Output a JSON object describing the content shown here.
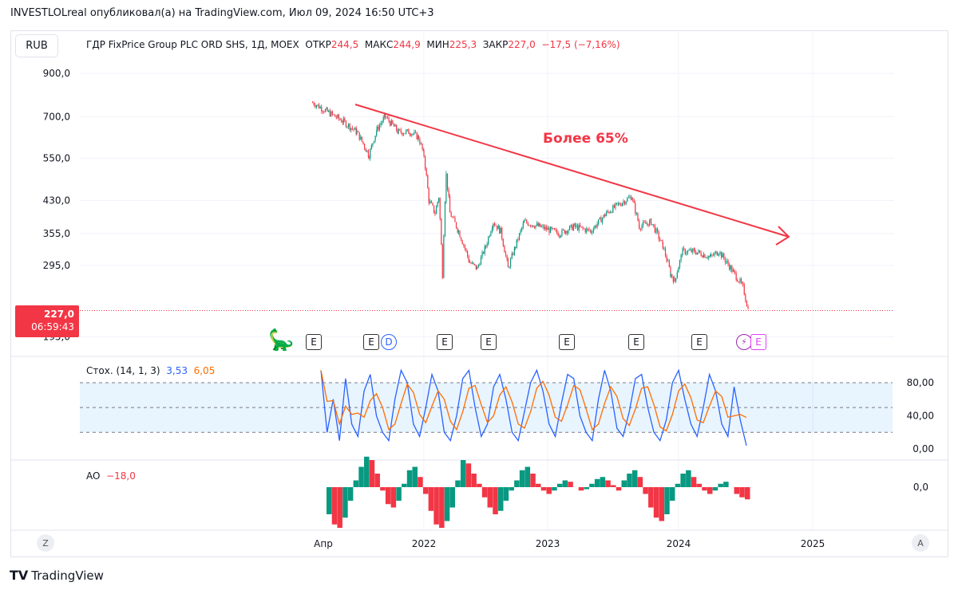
{
  "header": {
    "published": "INVESTLOLreal опубликовал(а) на TradingView.com, Июл 09, 2024 16:50 UTC+3"
  },
  "chart": {
    "currency": "RUB",
    "symbol": "ГДР FixPrice Group PLC ORD SHS, 1Д, MOEX",
    "open_label": "ОТКР",
    "open": "244,5",
    "high_label": "МАКС",
    "high": "244,9",
    "low_label": "МИН",
    "low": "225,3",
    "close_label": "ЗАКР",
    "close": "227,0",
    "change": "−17,5 (−7,16%)",
    "last_price": "227,0",
    "countdown": "06:59:43",
    "annotation": "Более 65%",
    "events": [
      "E",
      "E",
      "D",
      "E",
      "E",
      "E",
      "E",
      "E",
      "E"
    ],
    "colors": {
      "up": "#089981",
      "down": "#f23645",
      "trend": "#f23645",
      "stoch_k": "#2962ff",
      "stoch_d": "#ff6d00"
    }
  },
  "chart_data": [
    {
      "type": "candlestick-approx",
      "title": "ГДР FixPrice Group PLC ORD SHS, 1Д, MOEX",
      "yscale": "log",
      "yticks": [
        "900,0",
        "700,0",
        "550,0",
        "430,0",
        "355,0",
        "295,0",
        "195,0"
      ],
      "ytick_values": [
        900,
        700,
        550,
        430,
        355,
        295,
        195
      ],
      "xticks": [
        "Апр",
        "2022",
        "2023",
        "2024",
        "2025"
      ],
      "xtick_values": [
        2021.25,
        2022,
        2023,
        2024,
        2025
      ],
      "points": [
        [
          2021.17,
          760
        ],
        [
          2021.28,
          720
        ],
        [
          2021.4,
          680
        ],
        [
          2021.5,
          640
        ],
        [
          2021.59,
          560
        ],
        [
          2021.65,
          650
        ],
        [
          2021.71,
          700
        ],
        [
          2021.81,
          640
        ],
        [
          2021.9,
          640
        ],
        [
          2021.96,
          620
        ],
        [
          2022.0,
          560
        ],
        [
          2022.04,
          430
        ],
        [
          2022.09,
          400
        ],
        [
          2022.12,
          440
        ],
        [
          2022.15,
          280
        ],
        [
          2022.18,
          500
        ],
        [
          2022.21,
          400
        ],
        [
          2022.28,
          360
        ],
        [
          2022.37,
          300
        ],
        [
          2022.43,
          290
        ],
        [
          2022.5,
          330
        ],
        [
          2022.56,
          380
        ],
        [
          2022.62,
          360
        ],
        [
          2022.68,
          290
        ],
        [
          2022.74,
          330
        ],
        [
          2022.81,
          380
        ],
        [
          2022.93,
          370
        ],
        [
          2023.09,
          355
        ],
        [
          2023.2,
          370
        ],
        [
          2023.33,
          360
        ],
        [
          2023.45,
          400
        ],
        [
          2023.54,
          420
        ],
        [
          2023.64,
          440
        ],
        [
          2023.7,
          370
        ],
        [
          2023.79,
          380
        ],
        [
          2023.88,
          330
        ],
        [
          2023.94,
          280
        ],
        [
          2023.97,
          270
        ],
        [
          2024.03,
          320
        ],
        [
          2024.12,
          320
        ],
        [
          2024.24,
          310
        ],
        [
          2024.3,
          320
        ],
        [
          2024.36,
          300
        ],
        [
          2024.42,
          280
        ],
        [
          2024.48,
          260
        ],
        [
          2024.52,
          227
        ]
      ]
    },
    {
      "type": "line",
      "title": "Стох. (14, 1, 3)",
      "values_label": [
        "3,53",
        "6,05"
      ],
      "yticks": [
        "80,00",
        "40,00",
        "0,00"
      ],
      "bands": [
        20,
        50,
        80
      ],
      "k": [
        95,
        20,
        60,
        10,
        85,
        30,
        15,
        70,
        90,
        40,
        20,
        10,
        60,
        95,
        80,
        30,
        15,
        50,
        90,
        70,
        20,
        10,
        40,
        85,
        95,
        50,
        15,
        30,
        75,
        90,
        60,
        20,
        10,
        45,
        80,
        95,
        70,
        30,
        15,
        55,
        90,
        85,
        40,
        20,
        10,
        60,
        95,
        70,
        25,
        15,
        45,
        85,
        90,
        50,
        20,
        10,
        35,
        80,
        95,
        60,
        30,
        15,
        50,
        90,
        70,
        30,
        15,
        75,
        35,
        4
      ]
    },
    {
      "type": "bar",
      "title": "AO",
      "value_label": "−18,0",
      "yticks": [
        "0,0"
      ],
      "values": [
        -40,
        -55,
        -60,
        -45,
        -20,
        10,
        30,
        45,
        40,
        20,
        -5,
        -25,
        -30,
        -20,
        5,
        25,
        30,
        15,
        -10,
        -35,
        -55,
        -60,
        -50,
        -30,
        10,
        40,
        35,
        20,
        5,
        -15,
        -30,
        -40,
        -35,
        -20,
        -5,
        10,
        25,
        30,
        20,
        5,
        -5,
        -10,
        -5,
        5,
        10,
        8,
        0,
        -5,
        -3,
        5,
        12,
        15,
        10,
        3,
        -5,
        10,
        20,
        25,
        15,
        -10,
        -30,
        -45,
        -50,
        -40,
        -20,
        5,
        20,
        25,
        15,
        5,
        -5,
        -10,
        -5,
        5,
        8,
        0,
        -10,
        -15,
        -18
      ]
    }
  ],
  "corners": {
    "left": "Z",
    "right": "A"
  },
  "footer": {
    "brand": "TradingView"
  }
}
